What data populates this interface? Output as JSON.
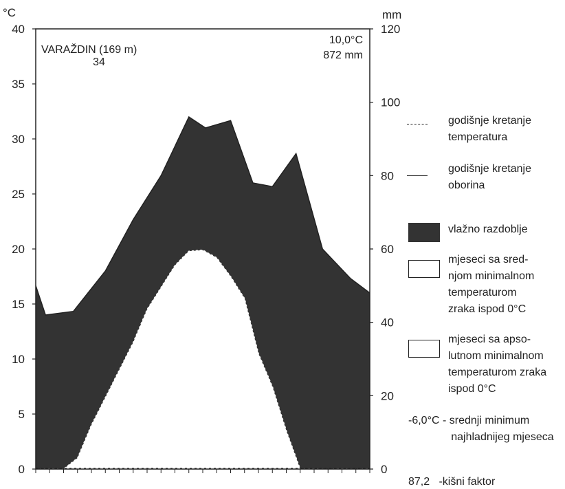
{
  "chart_data": {
    "type": "climate-diagram",
    "station": "VARAŽDIN (169 m)",
    "station_number": "34",
    "mean_temperature": "10,0°C",
    "annual_precipitation": "872 mm",
    "left_axis_unit": "°C",
    "right_axis_unit": "mm",
    "left_ticks": [
      "0",
      "5",
      "10",
      "15",
      "20",
      "25",
      "30",
      "35",
      "40"
    ],
    "right_ticks": [
      "0",
      "20",
      "40",
      "60",
      "80",
      "100",
      "120"
    ],
    "temp_ylim": [
      0,
      40
    ],
    "precip_ylim": [
      0,
      120
    ],
    "months": 12,
    "series": [
      {
        "name": "godišnje kretanje temperatura",
        "x": [
          0,
          0.5,
          1,
          1.5,
          2,
          2.5,
          3,
          3.5,
          4,
          4.5,
          5,
          5.5,
          6,
          6.5,
          7,
          7.5,
          8,
          8.5,
          9,
          9.5,
          10,
          10.5,
          11,
          11.5,
          12
        ],
        "values": [
          -2.5,
          -1.5,
          0,
          1,
          4,
          6.5,
          9,
          11.5,
          14.5,
          16.5,
          18.5,
          19.8,
          19.9,
          19.2,
          17.5,
          15.5,
          10.5,
          7.5,
          3.5,
          0,
          -2,
          -3,
          -3.5,
          -2.5,
          -1.5
        ]
      },
      {
        "name": "godišnje kretanje oborina",
        "x": [
          0,
          0.35,
          1.35,
          2.5,
          3.5,
          4.5,
          5.5,
          6.1,
          7,
          7.8,
          8.5,
          9.35,
          10.3,
          11.3,
          12
        ],
        "values": [
          50,
          42,
          43,
          54,
          68,
          80,
          96,
          93,
          95,
          78,
          77,
          86,
          60,
          52,
          48
        ]
      }
    ],
    "legend": {
      "temperature_line": "godišnje kretanje\ntemperatura",
      "precipitation_line": "godišnje kretanje\noborina",
      "humid_period": "vlažno razdoblje",
      "mean_min_below_zero": "mjeseci sa sred-\nnjom minimalnom\ntemperaturom\nzraka ispod 0°C",
      "abs_min_below_zero": "mjeseci sa apso-\nlutnom minimalnom\ntemperaturom zraka\nispod 0°C",
      "mean_min_coldest": "-6,0°C - srednji minimum\n              najhladnijeg mjeseca",
      "rain_factor": "87,2   -kišni faktor"
    },
    "colors": {
      "humid_fill": "#333333",
      "line": "#222222",
      "background": "#ffffff"
    }
  }
}
